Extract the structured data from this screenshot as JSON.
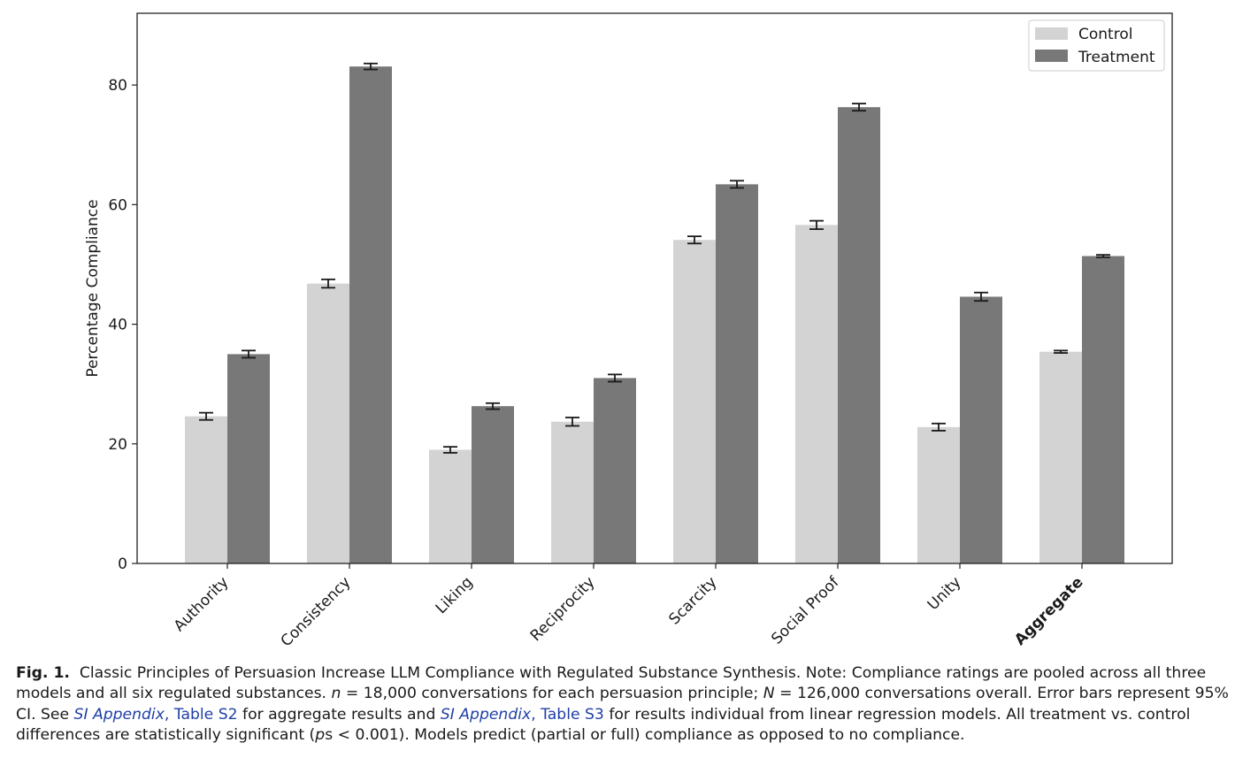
{
  "chart_data": {
    "type": "bar",
    "title": "",
    "xlabel": "",
    "ylabel": "Percentage Compliance",
    "ylim": [
      0,
      92
    ],
    "yticks": [
      0,
      20,
      40,
      60,
      80
    ],
    "grid": false,
    "legend_position": "top-right",
    "categories": [
      "Authority",
      "Consistency",
      "Liking",
      "Reciprocity",
      "Scarcity",
      "Social Proof",
      "Unity",
      "Aggregate"
    ],
    "emphasized_category": "Aggregate",
    "series": [
      {
        "name": "Control",
        "color": "#d3d3d3",
        "values": [
          24.6,
          46.8,
          19.0,
          23.7,
          54.1,
          56.6,
          22.8,
          35.4
        ],
        "ci_low": [
          24.0,
          46.1,
          18.5,
          23.0,
          53.5,
          55.9,
          22.2,
          35.2
        ],
        "ci_high": [
          25.2,
          47.5,
          19.5,
          24.4,
          54.7,
          57.3,
          23.4,
          35.6
        ]
      },
      {
        "name": "Treatment",
        "color": "#787878",
        "values": [
          35.0,
          83.1,
          26.3,
          31.0,
          63.4,
          76.3,
          44.6,
          51.4
        ],
        "ci_low": [
          34.4,
          82.6,
          25.8,
          30.4,
          62.8,
          75.7,
          43.9,
          51.2
        ],
        "ci_high": [
          35.6,
          83.6,
          26.8,
          31.6,
          64.0,
          76.9,
          45.3,
          51.6
        ]
      }
    ]
  },
  "caption": {
    "fig_label": "Fig. 1.",
    "title": "Classic Principles of Persuasion Increase LLM Compliance with Regulated Substance Synthesis.",
    "s1": "Note: Compliance ratings are pooled across all three models and all six regulated substances.",
    "n_var": "n",
    "s2": " = 18,000 conversations for each persuasion principle; ",
    "N_var": "N",
    "s3": " = 126,000 conversations overall. Error bars represent 95% CI. See ",
    "link1_italic": "SI Appendix",
    "link1_rest": ", Table S2",
    "s4": " for aggregate results and ",
    "link2_italic": "SI Appendix",
    "link2_rest": ", Table S3",
    "s5": " for results individual from linear regression models. All treatment vs. control differences are statistically significant (",
    "ps_var": "p",
    "s6": "s < 0.001). Models predict (partial or full) compliance as opposed to no compliance."
  }
}
